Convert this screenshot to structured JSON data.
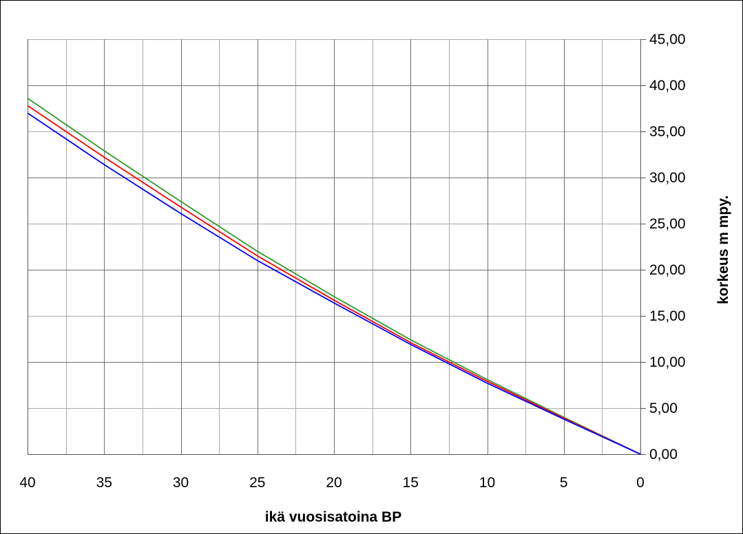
{
  "chart_data": {
    "type": "line",
    "title": "",
    "xlabel": "ikä vuosisatoina BP",
    "ylabel": "korkeus m mpy.",
    "xlim": [
      40,
      0
    ],
    "ylim": [
      0,
      45
    ],
    "x_reversed": true,
    "x_ticks": [
      "40",
      "35",
      "30",
      "25",
      "20",
      "15",
      "10",
      "5",
      "0"
    ],
    "y_ticks": [
      "0,00",
      "5,00",
      "10,00",
      "15,00",
      "20,00",
      "25,00",
      "30,00",
      "35,00",
      "40,00",
      "45,00"
    ],
    "grid": true,
    "y_axis_side": "right",
    "series": [
      {
        "color": "#2a9a2a",
        "x": [
          40,
          35,
          30,
          25,
          20,
          15,
          10,
          5,
          0
        ],
        "y": [
          38.6,
          32.9,
          27.4,
          22.0,
          17.1,
          12.4,
          8.1,
          4.0,
          0.0
        ]
      },
      {
        "color": "#ff0000",
        "x": [
          40,
          35,
          30,
          25,
          20,
          15,
          10,
          5,
          0
        ],
        "y": [
          37.8,
          32.2,
          26.8,
          21.5,
          16.7,
          12.1,
          7.9,
          3.9,
          0.0
        ]
      },
      {
        "color": "#0000ff",
        "x": [
          40,
          35,
          30,
          25,
          20,
          15,
          10,
          5,
          0
        ],
        "y": [
          37.0,
          31.4,
          26.1,
          21.0,
          16.4,
          11.9,
          7.7,
          3.8,
          0.0
        ]
      }
    ]
  }
}
